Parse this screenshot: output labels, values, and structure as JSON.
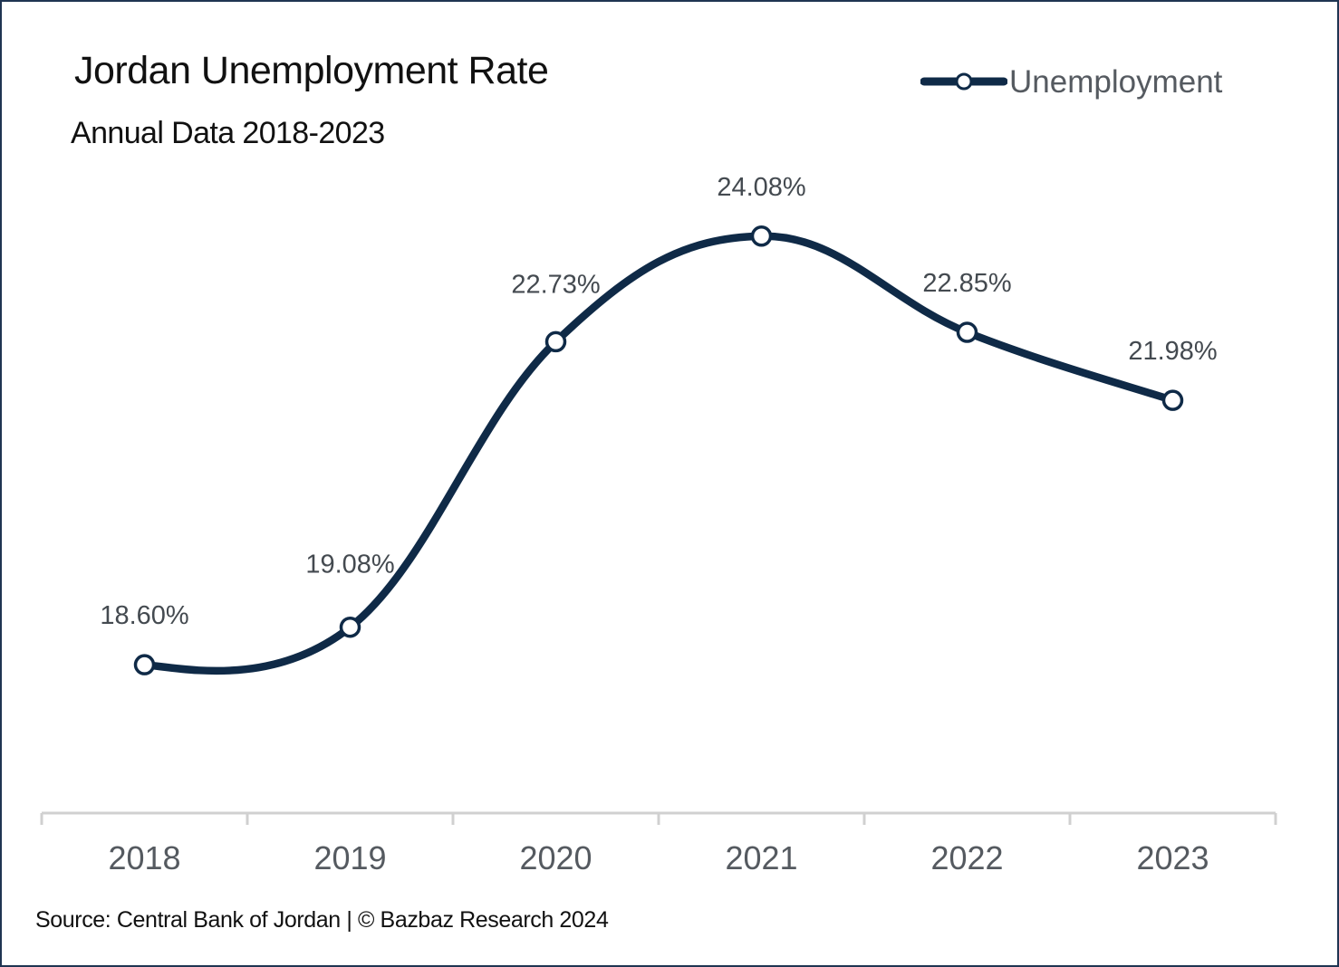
{
  "chart_data": {
    "type": "line",
    "title": "Jordan Unemployment Rate",
    "subtitle": "Annual Data 2018-2023",
    "categories": [
      "2018",
      "2019",
      "2020",
      "2021",
      "2022",
      "2023"
    ],
    "series": [
      {
        "name": "Unemployment",
        "values": [
          18.6,
          19.08,
          22.73,
          24.08,
          22.85,
          21.98
        ],
        "labels": [
          "18.60%",
          "19.08%",
          "22.73%",
          "24.08%",
          "22.85%",
          "21.98%"
        ],
        "color": "#0f2a47"
      }
    ],
    "xlabel": "",
    "ylabel": "",
    "ylim": [
      15.5,
      25.2
    ],
    "grid": false,
    "legend": "top-right",
    "smooth": true,
    "source": "Source: Central Bank of Jordan | © Bazbaz Research 2024"
  }
}
